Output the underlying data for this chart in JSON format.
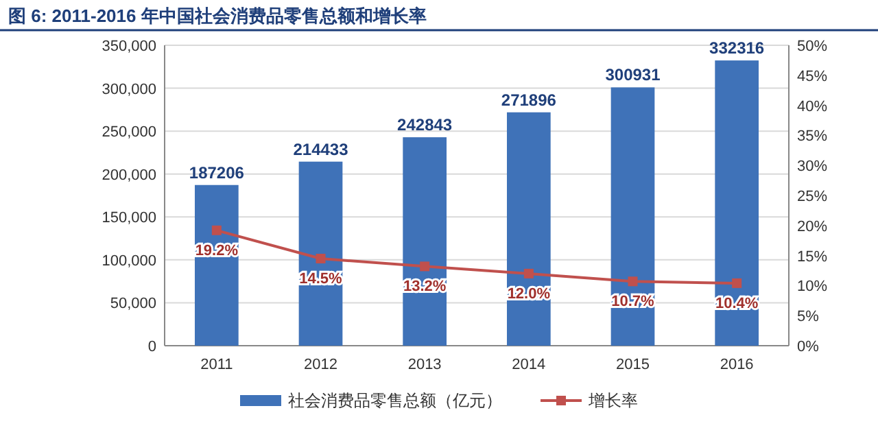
{
  "chart_data": {
    "type": "bar",
    "title": "图 6: 2011-2016 年中国社会消费品零售总额和增长率",
    "categories": [
      "2011",
      "2012",
      "2013",
      "2014",
      "2015",
      "2016"
    ],
    "series": [
      {
        "name": "社会消费品零售总额（亿元）",
        "color": "#3f72b8",
        "values": [
          187206,
          214433,
          242843,
          271896,
          300931,
          332316
        ],
        "value_labels": [
          "187206",
          "214433",
          "242843",
          "271896",
          "300931",
          "332316"
        ]
      },
      {
        "name": "增长率",
        "type": "line",
        "axis": "y2",
        "color": "#c0504d",
        "marker": "square",
        "values": [
          19.2,
          14.5,
          13.2,
          12.0,
          10.7,
          10.4
        ],
        "value_labels": [
          "19.2%",
          "14.5%",
          "13.2%",
          "12.0%",
          "10.7%",
          "10.4%"
        ]
      }
    ],
    "ylim": [
      0,
      350000
    ],
    "yticks": [
      0,
      {
        "value": 50000,
        "label": "50,000"
      },
      {
        "value": 100000,
        "label": "100,000"
      },
      {
        "value": 150000,
        "label": "150,000"
      },
      {
        "value": 200000,
        "label": "200,000"
      },
      {
        "value": 250000,
        "label": "250,000"
      },
      {
        "value": 300000,
        "label": "300,000"
      },
      {
        "value": 350000,
        "label": "350,000"
      }
    ],
    "y2lim": [
      0,
      50
    ],
    "y2ticks": [
      {
        "value": 0,
        "label": "0%"
      },
      {
        "value": 5,
        "label": "5%"
      },
      {
        "value": 10,
        "label": "10%"
      },
      {
        "value": 15,
        "label": "15%"
      },
      {
        "value": 20,
        "label": "20%"
      },
      {
        "value": 25,
        "label": "25%"
      },
      {
        "value": 30,
        "label": "30%"
      },
      {
        "value": 35,
        "label": "35%"
      },
      {
        "value": 40,
        "label": "40%"
      },
      {
        "value": 45,
        "label": "45%"
      },
      {
        "value": 50,
        "label": "50%"
      }
    ],
    "grid": "y",
    "legend": "bottom"
  }
}
